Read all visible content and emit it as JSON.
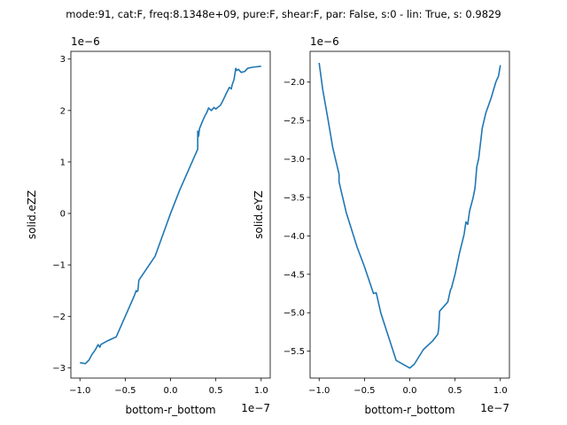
{
  "suptitle": "mode:91, cat:F, freq:8.1348e+09, pure:F, shear:F, par: False, s:0 - lin: True, s: 0.9829",
  "colors": {
    "line": "#1f77b4",
    "axes": "#000000",
    "background": "#ffffff"
  },
  "chart_data": [
    {
      "type": "line",
      "title": "",
      "xlabel": "bottom-r_bottom",
      "ylabel": "solid.eZZ",
      "x_offset_label": "1e−7",
      "y_offset_label": "1e−6",
      "xlim": [
        -1.1,
        1.1
      ],
      "ylim": [
        -3.2,
        3.15
      ],
      "xticks": [
        -1.0,
        -0.5,
        0.0,
        0.5,
        1.0
      ],
      "xtick_labels": [
        "−1.0",
        "−0.5",
        "0.0",
        "0.5",
        "1.0"
      ],
      "yticks": [
        -3,
        -2,
        -1,
        0,
        1,
        2,
        3
      ],
      "ytick_labels": [
        "−3",
        "−2",
        "−1",
        "0",
        "1",
        "2",
        "3"
      ],
      "grid": false,
      "series": [
        {
          "x": [
            -1.0,
            -0.94,
            -0.9,
            -0.87,
            -0.83,
            -0.8,
            -0.78,
            -0.77,
            -0.74,
            -0.7,
            -0.6,
            -0.4,
            -0.38,
            -0.37,
            -0.36,
            -0.35,
            -0.17,
            0.0,
            0.1,
            0.2,
            0.3,
            0.3,
            0.31,
            0.32,
            0.35,
            0.38,
            0.4,
            0.42,
            0.45,
            0.48,
            0.5,
            0.52,
            0.55,
            0.58,
            0.62,
            0.65,
            0.67,
            0.68,
            0.7,
            0.72,
            0.73,
            0.75,
            0.78,
            0.82,
            0.85,
            0.9,
            1.0
          ],
          "y": [
            -2.9,
            -2.92,
            -2.85,
            -2.75,
            -2.65,
            -2.55,
            -2.6,
            -2.55,
            -2.52,
            -2.48,
            -2.4,
            -1.6,
            -1.5,
            -1.52,
            -1.5,
            -1.3,
            -0.83,
            0.0,
            0.45,
            0.85,
            1.25,
            1.6,
            1.5,
            1.65,
            1.78,
            1.9,
            1.96,
            2.05,
            2.0,
            2.06,
            2.03,
            2.06,
            2.1,
            2.2,
            2.35,
            2.45,
            2.42,
            2.5,
            2.6,
            2.82,
            2.78,
            2.8,
            2.74,
            2.76,
            2.82,
            2.84,
            2.86
          ]
        }
      ]
    },
    {
      "type": "line",
      "title": "",
      "xlabel": "bottom-r_bottom",
      "ylabel": "solid.eYZ",
      "x_offset_label": "1e−7",
      "y_offset_label": "1e−6",
      "xlim": [
        -1.1,
        1.1
      ],
      "ylim": [
        -5.85,
        -1.6
      ],
      "xticks": [
        -1.0,
        -0.5,
        0.0,
        0.5,
        1.0
      ],
      "xtick_labels": [
        "−1.0",
        "−0.5",
        "0.0",
        "0.5",
        "1.0"
      ],
      "yticks": [
        -2.0,
        -2.5,
        -3.0,
        -3.5,
        -4.0,
        -4.5,
        -5.0,
        -5.5
      ],
      "ytick_labels": [
        "−2.0",
        "−2.5",
        "−3.0",
        "−3.5",
        "−4.0",
        "−4.5",
        "−5.0",
        "−5.5"
      ],
      "grid": false,
      "series": [
        {
          "x": [
            -1.0,
            -0.96,
            -0.9,
            -0.85,
            -0.78,
            -0.78,
            -0.76,
            -0.7,
            -0.58,
            -0.5,
            -0.4,
            -0.37,
            -0.32,
            -0.15,
            0.0,
            0.05,
            0.15,
            0.25,
            0.31,
            0.32,
            0.33,
            0.42,
            0.45,
            0.46,
            0.5,
            0.55,
            0.6,
            0.62,
            0.64,
            0.66,
            0.7,
            0.72,
            0.74,
            0.76,
            0.8,
            0.84,
            0.9,
            0.95,
            0.98,
            1.0
          ],
          "y": [
            -1.75,
            -2.1,
            -2.5,
            -2.85,
            -3.2,
            -3.3,
            -3.4,
            -3.7,
            -4.15,
            -4.4,
            -4.75,
            -4.74,
            -5.0,
            -5.62,
            -5.72,
            -5.67,
            -5.48,
            -5.37,
            -5.28,
            -5.2,
            -4.98,
            -4.86,
            -4.7,
            -4.68,
            -4.5,
            -4.22,
            -3.98,
            -3.82,
            -3.85,
            -3.68,
            -3.5,
            -3.38,
            -3.1,
            -3.0,
            -2.6,
            -2.4,
            -2.2,
            -2.0,
            -1.92,
            -1.78
          ]
        }
      ]
    }
  ]
}
